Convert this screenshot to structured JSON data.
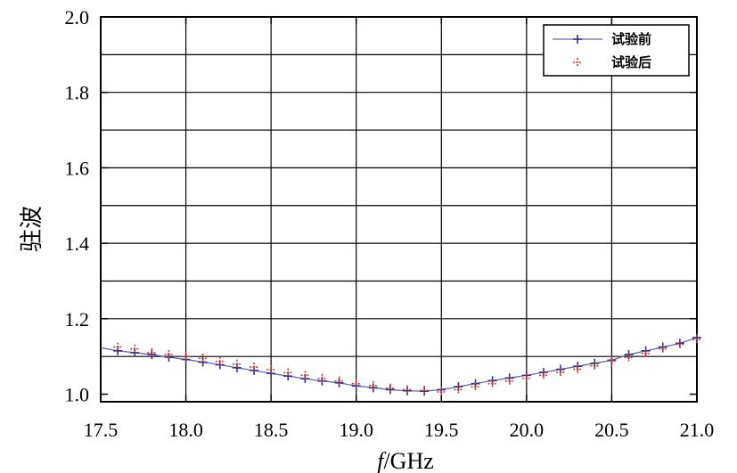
{
  "chart_data": {
    "type": "line",
    "title": "",
    "xlabel_italic": "f",
    "xlabel_unit": "/GHz",
    "ylabel": "驻波",
    "xlim": [
      17.5,
      21.0
    ],
    "ylim": [
      0.98,
      2.0
    ],
    "x_ticks": [
      "17.5",
      "18.0",
      "18.5",
      "19.0",
      "19.5",
      "20.0",
      "20.5",
      "21.0"
    ],
    "x_tick_values": [
      17.5,
      18.0,
      18.5,
      19.0,
      19.5,
      20.0,
      20.5,
      21.0
    ],
    "y_ticks": [
      "1.0",
      "1.2",
      "1.4",
      "1.6",
      "1.8",
      "2.0"
    ],
    "y_tick_values": [
      1.0,
      1.2,
      1.4,
      1.6,
      1.8,
      2.0
    ],
    "y_minor_gridlines": [
      1.1,
      1.3,
      1.5,
      1.7,
      1.9
    ],
    "grid": true,
    "legend_position": "top-right",
    "x": [
      17.6,
      17.7,
      17.8,
      17.9,
      18.0,
      18.1,
      18.2,
      18.3,
      18.4,
      18.5,
      18.6,
      18.7,
      18.8,
      18.9,
      19.0,
      19.1,
      19.2,
      19.3,
      19.4,
      19.5,
      19.6,
      19.7,
      19.8,
      19.9,
      20.0,
      20.1,
      20.2,
      20.3,
      20.4,
      20.5,
      20.6,
      20.7,
      20.8,
      20.9,
      21.0
    ],
    "series": [
      {
        "name": "试验前",
        "color": "#6a6aa8",
        "marker_color": "#2e2e8c",
        "line": true,
        "values": [
          1.115,
          1.11,
          1.105,
          1.098,
          1.092,
          1.085,
          1.078,
          1.07,
          1.063,
          1.055,
          1.048,
          1.041,
          1.035,
          1.03,
          1.022,
          1.017,
          1.012,
          1.009,
          1.008,
          1.012,
          1.02,
          1.028,
          1.036,
          1.043,
          1.05,
          1.058,
          1.066,
          1.074,
          1.082,
          1.09,
          1.105,
          1.115,
          1.125,
          1.135,
          1.15
        ]
      },
      {
        "name": "试验后",
        "color": "#e0503a",
        "marker_color": "#d23a2a",
        "line": false,
        "values": [
          1.125,
          1.12,
          1.11,
          1.105,
          1.1,
          1.095,
          1.087,
          1.08,
          1.072,
          1.065,
          1.057,
          1.05,
          1.042,
          1.035,
          1.028,
          1.023,
          1.016,
          1.012,
          1.01,
          1.006,
          1.012,
          1.02,
          1.028,
          1.035,
          1.042,
          1.05,
          1.058,
          1.066,
          1.075,
          1.088,
          1.097,
          1.108,
          1.12,
          1.132,
          1.145
        ]
      }
    ]
  }
}
